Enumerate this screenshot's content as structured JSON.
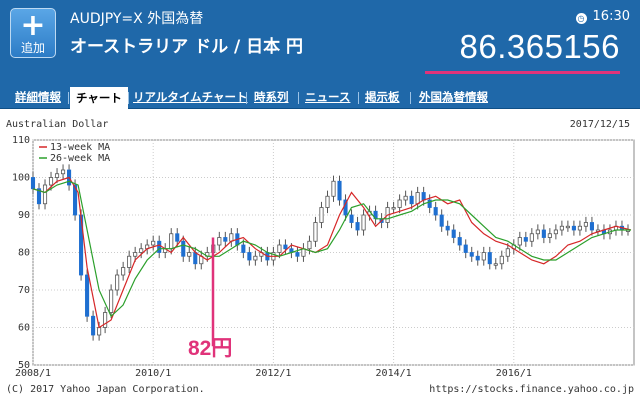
{
  "header": {
    "add_icon": "plus-icon",
    "add_label": "追加",
    "ticker": "AUDJPY=X  外国為替",
    "pair_name": "オーストラリア ドル / 日本 円",
    "clock_icon": "clock-icon",
    "time": "16:30",
    "price": "86.365156",
    "accent_color": "#e0337a",
    "bg_color": "#1f68a9"
  },
  "nav": {
    "tabs": [
      {
        "label": "詳細情報",
        "active": false
      },
      {
        "label": "チャート",
        "active": true
      },
      {
        "label": "リアルタイムチャート",
        "active": false
      },
      {
        "label": "時系列",
        "active": false
      },
      {
        "label": "ニュース",
        "active": false
      },
      {
        "label": "掲示板",
        "active": false
      },
      {
        "label": "外国為替情報",
        "active": false
      }
    ]
  },
  "chart": {
    "title": "Australian Dollar",
    "date": "2017/12/15",
    "footer_left": "(C) 2017 Yahoo Japan Corporation.",
    "footer_right": "https://stocks.finance.yahoo.co.jp",
    "annotation": "82円"
  },
  "chart_data": {
    "type": "line",
    "title": "Australian Dollar",
    "y_ticks": [
      "110",
      "100",
      "90",
      "80",
      "70",
      "60",
      "50"
    ],
    "ylim": [
      50,
      110
    ],
    "x_ticks": [
      "2008/1",
      "2010/1",
      "2012/1",
      "2014/1",
      "2016/1"
    ],
    "xlim": [
      2008.0,
      2018.0
    ],
    "grid": true,
    "legend_position": "top-left",
    "series": [
      {
        "name": "13-week MA",
        "color": "#d62728",
        "x": [
          2008.0,
          2008.2,
          2008.4,
          2008.6,
          2008.75,
          2008.9,
          2009.1,
          2009.3,
          2009.5,
          2009.7,
          2009.9,
          2010.1,
          2010.3,
          2010.5,
          2010.7,
          2010.9,
          2011.1,
          2011.3,
          2011.5,
          2011.7,
          2011.9,
          2012.1,
          2012.3,
          2012.5,
          2012.7,
          2012.9,
          2013.1,
          2013.3,
          2013.5,
          2013.7,
          2013.9,
          2014.1,
          2014.3,
          2014.5,
          2014.7,
          2014.9,
          2015.1,
          2015.3,
          2015.5,
          2015.7,
          2015.9,
          2016.1,
          2016.3,
          2016.5,
          2016.7,
          2016.9,
          2017.1,
          2017.3,
          2017.5,
          2017.7,
          2017.95
        ],
        "values": [
          97,
          96,
          99,
          100,
          96,
          76,
          60,
          62,
          70,
          78,
          81,
          82,
          80,
          84,
          80,
          78,
          80,
          83,
          84,
          81,
          79,
          79,
          82,
          81,
          80,
          82,
          90,
          96,
          92,
          87,
          90,
          91,
          92,
          94,
          95,
          93,
          94,
          88,
          85,
          83,
          82,
          80,
          78,
          77,
          79,
          82,
          83,
          85,
          86,
          87,
          86
        ]
      },
      {
        "name": "26-week MA",
        "color": "#2ca02c",
        "x": [
          2008.0,
          2008.2,
          2008.4,
          2008.6,
          2008.75,
          2008.9,
          2009.1,
          2009.3,
          2009.5,
          2009.7,
          2009.9,
          2010.1,
          2010.3,
          2010.5,
          2010.7,
          2010.9,
          2011.1,
          2011.3,
          2011.5,
          2011.7,
          2011.9,
          2012.1,
          2012.3,
          2012.5,
          2012.7,
          2012.9,
          2013.1,
          2013.3,
          2013.5,
          2013.7,
          2013.9,
          2014.1,
          2014.3,
          2014.5,
          2014.7,
          2014.9,
          2015.1,
          2015.3,
          2015.5,
          2015.7,
          2015.9,
          2016.1,
          2016.3,
          2016.5,
          2016.7,
          2016.9,
          2017.1,
          2017.3,
          2017.5,
          2017.7,
          2017.95
        ],
        "values": [
          97,
          96,
          98,
          99,
          98,
          86,
          70,
          63,
          66,
          73,
          78,
          81,
          81,
          82,
          81,
          79,
          79,
          81,
          83,
          82,
          80,
          79,
          80,
          81,
          80,
          81,
          86,
          92,
          93,
          89,
          89,
          90,
          91,
          93,
          94,
          94,
          93,
          90,
          87,
          84,
          83,
          81,
          79,
          78,
          78,
          80,
          82,
          84,
          85,
          86,
          86
        ]
      }
    ],
    "candles": {
      "color_up": "#ffffff",
      "color_down": "#1f6fd0",
      "x": [
        2008.0,
        2008.1,
        2008.2,
        2008.3,
        2008.4,
        2008.5,
        2008.6,
        2008.7,
        2008.8,
        2008.9,
        2009.0,
        2009.1,
        2009.2,
        2009.3,
        2009.4,
        2009.5,
        2009.6,
        2009.7,
        2009.8,
        2009.9,
        2010.0,
        2010.1,
        2010.2,
        2010.3,
        2010.4,
        2010.5,
        2010.6,
        2010.7,
        2010.8,
        2010.9,
        2011.0,
        2011.1,
        2011.2,
        2011.3,
        2011.4,
        2011.5,
        2011.6,
        2011.7,
        2011.8,
        2011.9,
        2012.0,
        2012.1,
        2012.2,
        2012.3,
        2012.4,
        2012.5,
        2012.6,
        2012.7,
        2012.8,
        2012.9,
        2013.0,
        2013.1,
        2013.2,
        2013.3,
        2013.4,
        2013.5,
        2013.6,
        2013.7,
        2013.8,
        2013.9,
        2014.0,
        2014.1,
        2014.2,
        2014.3,
        2014.4,
        2014.5,
        2014.6,
        2014.7,
        2014.8,
        2014.9,
        2015.0,
        2015.1,
        2015.2,
        2015.3,
        2015.4,
        2015.5,
        2015.6,
        2015.7,
        2015.8,
        2015.9,
        2016.0,
        2016.1,
        2016.2,
        2016.3,
        2016.4,
        2016.5,
        2016.6,
        2016.7,
        2016.8,
        2016.9,
        2017.0,
        2017.1,
        2017.2,
        2017.3,
        2017.4,
        2017.5,
        2017.6,
        2017.7,
        2017.8,
        2017.9
      ],
      "open": [
        100,
        97,
        93,
        98,
        100,
        101,
        102,
        98,
        90,
        74,
        63,
        58,
        60,
        64,
        70,
        74,
        76,
        79,
        80,
        81,
        82,
        83,
        80,
        81,
        85,
        83,
        79,
        80,
        77,
        79,
        80,
        82,
        84,
        83,
        85,
        82,
        80,
        78,
        79,
        80,
        78,
        80,
        82,
        81,
        80,
        79,
        81,
        83,
        88,
        92,
        95,
        99,
        94,
        90,
        88,
        86,
        90,
        91,
        89,
        88,
        92,
        92,
        94,
        95,
        93,
        96,
        94,
        92,
        90,
        87,
        86,
        84,
        82,
        80,
        79,
        78,
        80,
        77,
        77,
        79,
        81,
        82,
        84,
        83,
        85,
        86,
        84,
        85,
        86,
        87,
        87,
        86,
        87,
        88,
        86,
        86,
        85,
        86,
        87,
        86
      ],
      "close": [
        97,
        93,
        98,
        100,
        101,
        102,
        98,
        90,
        74,
        63,
        58,
        60,
        64,
        70,
        74,
        76,
        79,
        80,
        81,
        82,
        83,
        80,
        81,
        85,
        83,
        79,
        80,
        77,
        79,
        80,
        82,
        84,
        83,
        85,
        82,
        80,
        78,
        79,
        80,
        78,
        80,
        82,
        81,
        80,
        79,
        81,
        83,
        88,
        92,
        95,
        99,
        94,
        90,
        88,
        86,
        90,
        91,
        89,
        88,
        92,
        92,
        94,
        95,
        93,
        96,
        94,
        92,
        90,
        87,
        86,
        84,
        82,
        80,
        79,
        78,
        80,
        77,
        77,
        79,
        81,
        82,
        84,
        83,
        85,
        86,
        84,
        85,
        86,
        87,
        87,
        86,
        87,
        88,
        86,
        86,
        85,
        86,
        87,
        86,
        86
      ]
    }
  }
}
